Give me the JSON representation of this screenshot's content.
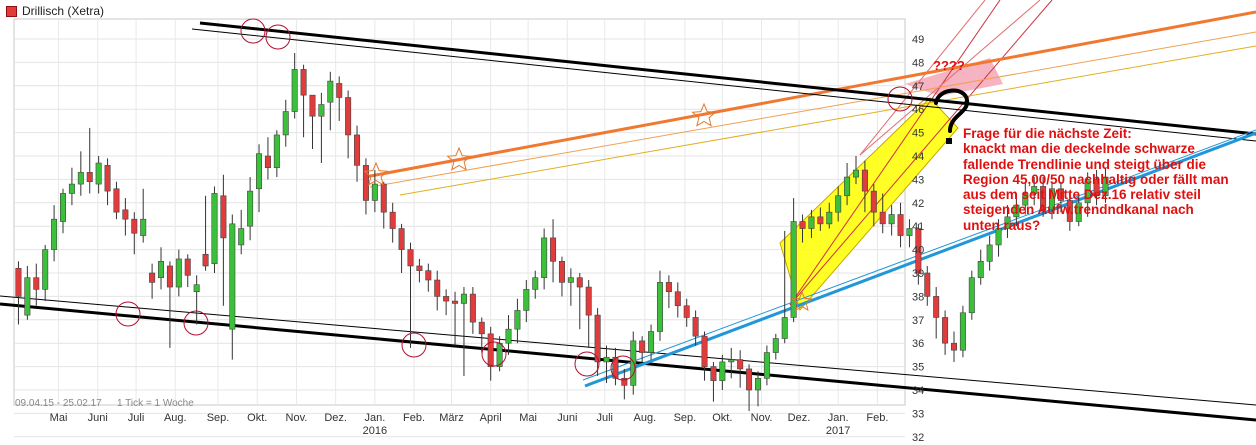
{
  "legend": {
    "label": "Drillisch (Xetra)",
    "color": "#e03c3c"
  },
  "chart_data": {
    "type": "candlestick",
    "title": "Drillisch (Xetra)",
    "period": "09.04.15 - 25.02.17",
    "tick_info": "1 Tick = 1 Woche",
    "ylim": [
      31,
      50
    ],
    "yticks": [
      32,
      33,
      34,
      35,
      36,
      37,
      38,
      39,
      40,
      41,
      42,
      43,
      44,
      45,
      46,
      47,
      48,
      49
    ],
    "xticks": [
      {
        "label": "Mai",
        "week": 4.5,
        "year": ""
      },
      {
        "label": "Juni",
        "week": 8.9,
        "year": ""
      },
      {
        "label": "Juli",
        "week": 13.2,
        "year": ""
      },
      {
        "label": "Aug.",
        "week": 17.6,
        "year": ""
      },
      {
        "label": "Sep.",
        "week": 22.4,
        "year": ""
      },
      {
        "label": "Okt.",
        "week": 26.8,
        "year": ""
      },
      {
        "label": "Nov.",
        "week": 31.2,
        "year": ""
      },
      {
        "label": "Dez.",
        "week": 35.6,
        "year": ""
      },
      {
        "label": "Jan.",
        "week": 40.0,
        "year": "2016"
      },
      {
        "label": "Feb.",
        "week": 44.4,
        "year": ""
      },
      {
        "label": "März",
        "week": 48.6,
        "year": ""
      },
      {
        "label": "April",
        "week": 53.0,
        "year": ""
      },
      {
        "label": "Mai",
        "week": 57.2,
        "year": ""
      },
      {
        "label": "Juni",
        "week": 61.6,
        "year": ""
      },
      {
        "label": "Juli",
        "week": 65.8,
        "year": ""
      },
      {
        "label": "Aug.",
        "week": 70.3,
        "year": ""
      },
      {
        "label": "Sep.",
        "week": 74.8,
        "year": ""
      },
      {
        "label": "Okt.",
        "week": 79.0,
        "year": ""
      },
      {
        "label": "Nov.",
        "week": 83.4,
        "year": ""
      },
      {
        "label": "Dez.",
        "week": 87.6,
        "year": ""
      },
      {
        "label": "Jan.",
        "week": 92.0,
        "year": "2017"
      },
      {
        "label": "Feb.",
        "week": 96.4,
        "year": ""
      }
    ],
    "candles": [
      [
        39.2,
        38.0,
        39.5,
        36.8
      ],
      [
        37.2,
        38.8,
        39.3,
        37.0
      ],
      [
        38.8,
        38.3,
        39.4,
        37.6
      ],
      [
        38.3,
        40.0,
        40.2,
        37.8
      ],
      [
        40.0,
        41.3,
        41.9,
        39.5
      ],
      [
        41.2,
        42.4,
        42.6,
        40.7
      ],
      [
        42.4,
        42.8,
        43.5,
        41.9
      ],
      [
        42.8,
        43.3,
        44.2,
        42.3
      ],
      [
        43.3,
        42.9,
        45.2,
        42.4
      ],
      [
        42.8,
        43.7,
        44.0,
        42.4
      ],
      [
        43.6,
        42.5,
        43.9,
        41.9
      ],
      [
        42.6,
        41.6,
        42.9,
        41.3
      ],
      [
        41.7,
        41.3,
        42.2,
        40.6
      ],
      [
        41.3,
        40.7,
        41.6,
        39.8
      ],
      [
        40.6,
        41.3,
        42.6,
        40.3
      ],
      [
        39.0,
        38.6,
        39.4,
        37.9
      ],
      [
        38.8,
        39.5,
        40.1,
        38.3
      ],
      [
        39.3,
        38.4,
        39.5,
        35.8
      ],
      [
        38.4,
        39.6,
        40.0,
        38.0
      ],
      [
        39.6,
        38.9,
        39.8,
        38.4
      ],
      [
        38.2,
        38.5,
        38.9,
        36.8
      ],
      [
        39.8,
        39.3,
        42.3,
        39.1
      ],
      [
        39.4,
        42.4,
        42.7,
        39.0
      ],
      [
        42.3,
        40.5,
        43.2,
        37.6
      ],
      [
        36.6,
        41.1,
        41.5,
        35.3
      ],
      [
        40.2,
        40.9,
        41.7,
        39.8
      ],
      [
        41.0,
        42.5,
        43.1,
        40.4
      ],
      [
        42.6,
        44.1,
        44.5,
        41.6
      ],
      [
        44.0,
        43.5,
        44.8,
        43.0
      ],
      [
        43.5,
        44.9,
        45.1,
        43.1
      ],
      [
        44.9,
        45.9,
        46.4,
        44.4
      ],
      [
        45.9,
        47.7,
        48.4,
        45.6
      ],
      [
        47.7,
        46.6,
        47.9,
        44.8
      ],
      [
        46.6,
        45.7,
        46.3,
        44.3
      ],
      [
        45.7,
        46.2,
        46.7,
        43.7
      ],
      [
        46.3,
        47.2,
        47.6,
        45.1
      ],
      [
        47.1,
        46.5,
        47.4,
        45.5
      ],
      [
        46.5,
        44.9,
        46.8,
        43.9
      ],
      [
        44.9,
        43.6,
        45.3,
        42.9
      ],
      [
        43.6,
        42.1,
        43.9,
        41.5
      ],
      [
        42.1,
        42.8,
        43.4,
        41.6
      ],
      [
        42.8,
        41.6,
        42.9,
        40.9
      ],
      [
        41.6,
        40.9,
        42.0,
        40.3
      ],
      [
        40.9,
        40.0,
        41.1,
        39.0
      ],
      [
        40.0,
        39.3,
        40.3,
        35.8
      ],
      [
        39.3,
        39.1,
        39.6,
        38.6
      ],
      [
        39.1,
        38.7,
        39.4,
        38.2
      ],
      [
        38.7,
        38.0,
        39.1,
        37.4
      ],
      [
        38.0,
        37.8,
        38.3,
        37.2
      ],
      [
        37.8,
        37.7,
        38.2,
        35.9
      ],
      [
        37.7,
        38.1,
        38.4,
        34.6
      ],
      [
        38.1,
        36.9,
        38.4,
        36.4
      ],
      [
        36.9,
        36.4,
        37.1,
        35.6
      ],
      [
        36.4,
        35.0,
        36.7,
        34.4
      ],
      [
        35.0,
        36.0,
        36.3,
        34.8
      ],
      [
        36.0,
        36.6,
        37.2,
        35.5
      ],
      [
        36.6,
        37.4,
        37.9,
        36.0
      ],
      [
        37.4,
        38.3,
        38.7,
        36.9
      ],
      [
        38.3,
        38.8,
        39.1,
        37.9
      ],
      [
        38.8,
        40.5,
        40.9,
        38.3
      ],
      [
        40.5,
        39.5,
        41.3,
        38.6
      ],
      [
        39.5,
        38.6,
        39.7,
        38.0
      ],
      [
        38.6,
        38.8,
        39.2,
        37.6
      ],
      [
        38.8,
        38.4,
        39.0,
        36.6
      ],
      [
        38.4,
        37.2,
        38.7,
        35.8
      ],
      [
        37.2,
        35.2,
        37.5,
        34.6
      ],
      [
        35.2,
        35.4,
        35.9,
        34.3
      ],
      [
        35.4,
        34.5,
        35.8,
        34.2
      ],
      [
        34.5,
        34.2,
        34.9,
        33.6
      ],
      [
        34.2,
        36.1,
        36.5,
        33.8
      ],
      [
        36.1,
        35.6,
        36.3,
        35.2
      ],
      [
        35.6,
        36.5,
        36.8,
        35.3
      ],
      [
        36.5,
        38.6,
        39.1,
        36.1
      ],
      [
        38.6,
        38.2,
        38.9,
        37.5
      ],
      [
        38.2,
        37.6,
        38.6,
        37.1
      ],
      [
        37.6,
        37.1,
        37.9,
        36.7
      ],
      [
        37.1,
        36.3,
        37.4,
        35.9
      ],
      [
        36.3,
        35.0,
        36.5,
        34.4
      ],
      [
        35.0,
        34.4,
        35.2,
        33.5
      ],
      [
        34.4,
        35.2,
        35.5,
        34.0
      ],
      [
        35.2,
        35.3,
        35.8,
        34.5
      ],
      [
        35.3,
        34.9,
        35.7,
        34.1
      ],
      [
        34.9,
        34.0,
        35.1,
        33.1
      ],
      [
        34.0,
        34.5,
        34.8,
        33.3
      ],
      [
        34.5,
        35.6,
        35.9,
        34.2
      ],
      [
        35.6,
        36.2,
        36.4,
        35.3
      ],
      [
        36.2,
        37.1,
        40.8,
        36.0
      ],
      [
        37.1,
        41.2,
        42.2,
        36.9
      ],
      [
        41.2,
        40.9,
        41.5,
        40.3
      ],
      [
        40.9,
        41.4,
        41.7,
        40.5
      ],
      [
        41.4,
        41.1,
        41.8,
        40.8
      ],
      [
        41.1,
        41.6,
        42.0,
        40.9
      ],
      [
        41.6,
        42.3,
        42.7,
        41.2
      ],
      [
        42.3,
        43.1,
        43.7,
        41.9
      ],
      [
        43.1,
        43.4,
        44.0,
        42.8
      ],
      [
        43.4,
        42.5,
        43.8,
        41.6
      ],
      [
        42.5,
        41.6,
        42.8,
        41.0
      ],
      [
        41.6,
        41.1,
        42.4,
        40.7
      ],
      [
        41.1,
        41.5,
        41.9,
        40.6
      ],
      [
        41.5,
        40.6,
        42.0,
        40.1
      ],
      [
        40.6,
        40.9,
        41.3,
        40.1
      ],
      [
        40.9,
        39.0,
        41.1,
        38.5
      ],
      [
        39.0,
        38.0,
        39.3,
        37.6
      ],
      [
        38.0,
        37.1,
        38.4,
        36.2
      ],
      [
        37.1,
        36.0,
        37.4,
        35.5
      ],
      [
        36.0,
        35.7,
        36.5,
        35.2
      ],
      [
        35.7,
        37.3,
        37.6,
        35.4
      ],
      [
        37.3,
        38.8,
        39.1,
        37.0
      ],
      [
        38.8,
        39.5,
        40.0,
        38.5
      ],
      [
        39.5,
        40.2,
        40.6,
        39.1
      ],
      [
        40.2,
        40.9,
        41.3,
        39.7
      ],
      [
        40.9,
        41.4,
        41.9,
        40.5
      ],
      [
        41.4,
        41.9,
        42.4,
        41.0
      ],
      [
        41.9,
        42.4,
        42.9,
        41.5
      ],
      [
        42.4,
        42.7,
        43.1,
        41.9
      ],
      [
        42.7,
        41.7,
        43.1,
        41.4
      ],
      [
        41.7,
        42.6,
        42.9,
        41.3
      ],
      [
        42.6,
        42.1,
        42.9,
        41.6
      ],
      [
        42.1,
        41.2,
        42.5,
        40.8
      ],
      [
        41.2,
        42.0,
        42.3,
        41.0
      ],
      [
        42.0,
        43.0,
        43.3,
        41.4
      ],
      [
        43.0,
        42.3,
        43.4,
        41.9
      ],
      [
        42.3,
        43.1,
        43.5,
        42.0
      ]
    ],
    "annotations": {
      "question_marks": "????",
      "note": "Frage für die nächste Zeit:\nknackt man die deckelnde schwarze fallende Trendlinie und steigt über die Region 45,00/50 nachhaltig oder fällt man aus dem seit Mitte Dez.16 relativ steil steigenden Aufw.trendndkanal nach unten raus?"
    },
    "colors": {
      "up": "#3cc03c",
      "down": "#e03c3c",
      "upper_trend": "#000000",
      "orange_channel": "#f07830",
      "blue_trend": "#2196d8",
      "yellow_channel": "#ffff00",
      "pink_zone": "#f4a6b6",
      "circles": "#b01030",
      "note_text": "#e01010"
    }
  }
}
